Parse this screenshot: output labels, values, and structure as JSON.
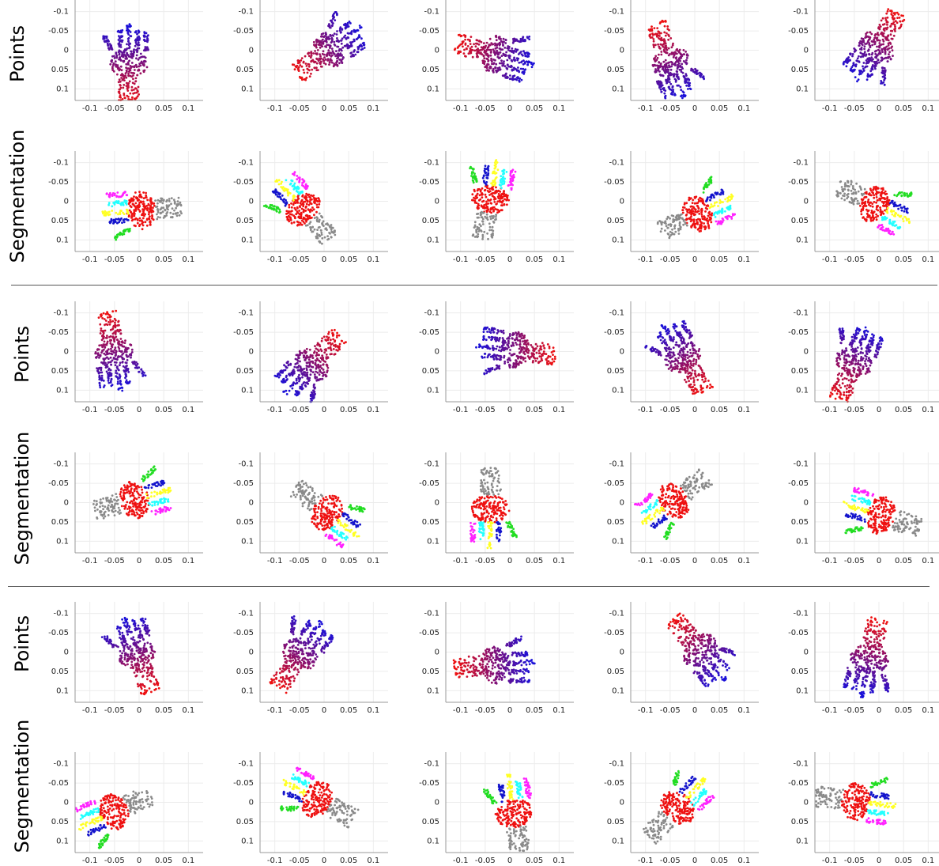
{
  "figure": {
    "row_labels": [
      "Points",
      "Segmentation",
      "Points",
      "Segmentation",
      "Points",
      "Segmentation"
    ],
    "colors": {
      "points_gradient": [
        "#1a10d8",
        "#ee1010"
      ],
      "palm": "#ee1111",
      "forearm": "#8a8a8a",
      "thumb": "#22dd22",
      "index": "#1414cc",
      "middle": "#ffff22",
      "ring": "#22ffff",
      "pinky": "#ff22ff",
      "grid": "#ececec",
      "axis": "#999999"
    }
  },
  "chart_data": {
    "type": "scatter",
    "grid": true,
    "y_inverted": true,
    "ylim": [
      0.13,
      -0.13
    ],
    "yticks": [
      -0.1,
      -0.05,
      0,
      0.05,
      0.1
    ],
    "ytick_labels": [
      "-0.1",
      "-0.05",
      "0",
      "0.05",
      "0.1"
    ],
    "xticks": [
      -0.1,
      -0.05,
      0,
      0.05,
      0.1
    ],
    "xtick_labels": [
      "-0.1",
      "-0.05",
      "0",
      "0.05",
      "0.1"
    ],
    "panels": [
      {
        "row": 0,
        "col": 0,
        "kind": "points",
        "xlim": [
          -0.13,
          0.13
        ]
      },
      {
        "row": 0,
        "col": 1,
        "kind": "points",
        "xlim": [
          -0.13,
          0.13
        ]
      },
      {
        "row": 0,
        "col": 2,
        "kind": "points",
        "xlim": [
          -0.13,
          0.13
        ]
      },
      {
        "row": 0,
        "col": 3,
        "kind": "points",
        "xlim": [
          -0.13,
          0.13
        ]
      },
      {
        "row": 0,
        "col": 4,
        "kind": "points",
        "xlim": [
          -0.13,
          0.13
        ]
      },
      {
        "row": 1,
        "col": 0,
        "kind": "segmentation",
        "xlim": [
          -0.13,
          0.13
        ]
      },
      {
        "row": 1,
        "col": 1,
        "kind": "segmentation",
        "xlim": [
          -0.13,
          0.13
        ]
      },
      {
        "row": 1,
        "col": 2,
        "kind": "segmentation",
        "xlim": [
          -0.13,
          0.13
        ]
      },
      {
        "row": 1,
        "col": 3,
        "kind": "segmentation",
        "xlim": [
          -0.13,
          0.13
        ]
      },
      {
        "row": 1,
        "col": 4,
        "kind": "segmentation",
        "xlim": [
          -0.13,
          0.13
        ]
      },
      {
        "row": 2,
        "col": 0,
        "kind": "points",
        "xlim": [
          -0.13,
          0.13
        ]
      },
      {
        "row": 2,
        "col": 1,
        "kind": "points",
        "xlim": [
          -0.13,
          0.13
        ]
      },
      {
        "row": 2,
        "col": 2,
        "kind": "points",
        "xlim": [
          -0.13,
          0.13
        ]
      },
      {
        "row": 2,
        "col": 3,
        "kind": "points",
        "xlim": [
          -0.13,
          0.13
        ]
      },
      {
        "row": 2,
        "col": 4,
        "kind": "points",
        "xlim": [
          -0.13,
          0.13
        ]
      },
      {
        "row": 3,
        "col": 0,
        "kind": "segmentation",
        "xlim": [
          -0.13,
          0.13
        ]
      },
      {
        "row": 3,
        "col": 1,
        "kind": "segmentation",
        "xlim": [
          -0.13,
          0.13
        ]
      },
      {
        "row": 3,
        "col": 2,
        "kind": "segmentation",
        "xlim": [
          -0.13,
          0.13
        ]
      },
      {
        "row": 3,
        "col": 3,
        "kind": "segmentation",
        "xlim": [
          -0.13,
          0.13
        ]
      },
      {
        "row": 3,
        "col": 4,
        "kind": "segmentation",
        "xlim": [
          -0.13,
          0.13
        ]
      },
      {
        "row": 4,
        "col": 0,
        "kind": "points",
        "xlim": [
          -0.13,
          0.13
        ]
      },
      {
        "row": 4,
        "col": 1,
        "kind": "points",
        "xlim": [
          -0.13,
          0.13
        ]
      },
      {
        "row": 4,
        "col": 2,
        "kind": "points",
        "xlim": [
          -0.13,
          0.13
        ]
      },
      {
        "row": 4,
        "col": 3,
        "kind": "points",
        "xlim": [
          -0.13,
          0.13
        ]
      },
      {
        "row": 4,
        "col": 4,
        "kind": "points",
        "xlim": [
          -0.13,
          0.13
        ]
      },
      {
        "row": 5,
        "col": 0,
        "kind": "segmentation",
        "xlim": [
          -0.13,
          0.13
        ]
      },
      {
        "row": 5,
        "col": 1,
        "kind": "segmentation",
        "xlim": [
          -0.13,
          0.13
        ]
      },
      {
        "row": 5,
        "col": 2,
        "kind": "segmentation",
        "xlim": [
          -0.13,
          0.13
        ]
      },
      {
        "row": 5,
        "col": 3,
        "kind": "segmentation",
        "xlim": [
          -0.13,
          0.13
        ]
      },
      {
        "row": 5,
        "col": 4,
        "kind": "segmentation",
        "xlim": [
          -0.13,
          0.13
        ]
      }
    ]
  }
}
